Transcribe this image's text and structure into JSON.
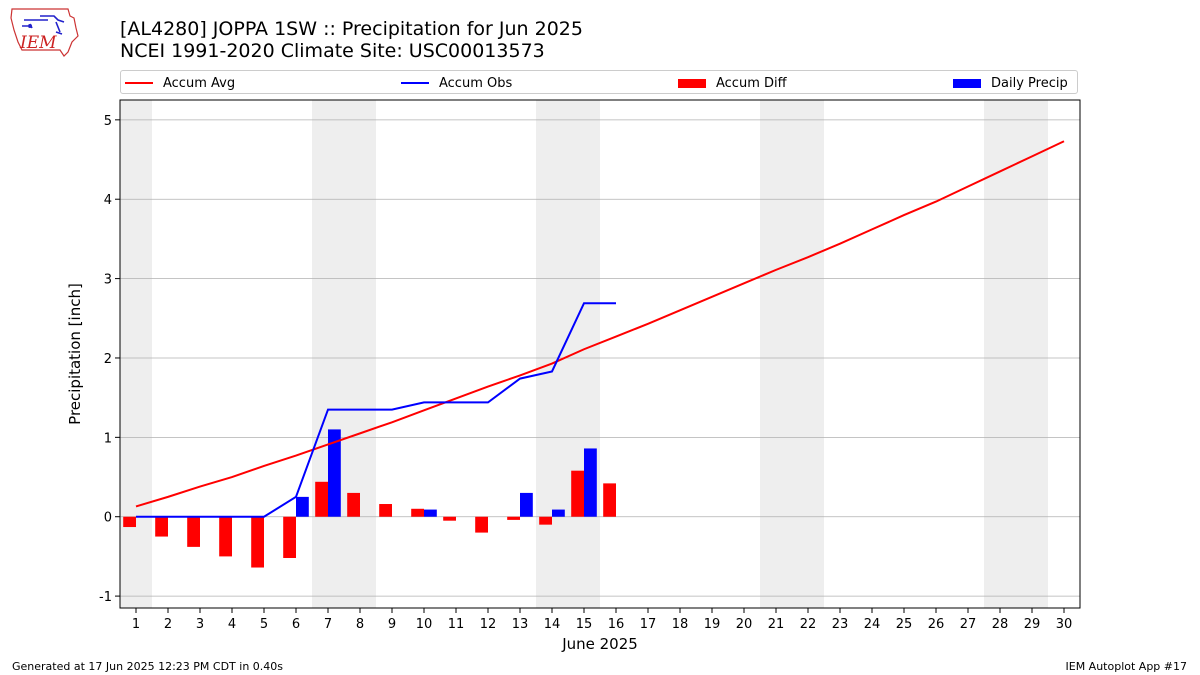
{
  "header": {
    "title_line1": "[AL4280] JOPPA 1SW :: Precipitation for Jun 2025",
    "title_line2": "NCEI 1991-2020 Climate Site: USC00013573",
    "logo_text": "IEM"
  },
  "footer": {
    "left": "Generated at 17 Jun 2025 12:23 PM CDT in 0.40s",
    "right": "IEM Autoplot App #17"
  },
  "colors": {
    "accum_avg": "#ff0000",
    "accum_obs": "#0000ff",
    "accum_diff": "#ff0000",
    "daily_precip": "#0000ff",
    "weekend_shade": "#eeeeee",
    "grid": "#b0b0b0"
  },
  "chart_data": {
    "type": "bar",
    "xlabel": "June 2025",
    "ylabel": "Precipitation [inch]",
    "xlim": [
      0.5,
      30.5
    ],
    "ylim": [
      -1.15,
      5.25
    ],
    "yticks": [
      -1,
      0,
      1,
      2,
      3,
      4,
      5
    ],
    "xticks": [
      1,
      2,
      3,
      4,
      5,
      6,
      7,
      8,
      9,
      10,
      11,
      12,
      13,
      14,
      15,
      16,
      17,
      18,
      19,
      20,
      21,
      22,
      23,
      24,
      25,
      26,
      27,
      28,
      29,
      30
    ],
    "grid": "horizontal",
    "legend_position": "top",
    "weekend_shading": [
      [
        0.5,
        1.5
      ],
      [
        6.5,
        8.5
      ],
      [
        13.5,
        15.5
      ],
      [
        20.5,
        22.5
      ],
      [
        27.5,
        29.5
      ]
    ],
    "series": [
      {
        "name": "Accum Avg",
        "kind": "line",
        "x": [
          1,
          2,
          3,
          4,
          5,
          6,
          7,
          8,
          9,
          10,
          11,
          12,
          13,
          14,
          15,
          16,
          17,
          18,
          19,
          20,
          21,
          22,
          23,
          24,
          25,
          26,
          27,
          28,
          29,
          30
        ],
        "values": [
          0.13,
          0.25,
          0.38,
          0.5,
          0.64,
          0.77,
          0.91,
          1.05,
          1.19,
          1.34,
          1.49,
          1.64,
          1.78,
          1.93,
          2.11,
          2.27,
          2.43,
          2.6,
          2.77,
          2.94,
          3.11,
          3.27,
          3.44,
          3.62,
          3.8,
          3.97,
          4.16,
          4.35,
          4.54,
          4.73
        ]
      },
      {
        "name": "Accum Obs",
        "kind": "line",
        "x": [
          1,
          2,
          3,
          4,
          5,
          6,
          7,
          8,
          9,
          10,
          11,
          12,
          13,
          14,
          15,
          16
        ],
        "values": [
          0,
          0,
          0,
          0,
          0,
          0.25,
          1.35,
          1.35,
          1.35,
          1.44,
          1.44,
          1.44,
          1.74,
          1.83,
          2.69,
          2.69
        ]
      },
      {
        "name": "Accum Diff",
        "kind": "bar",
        "x": [
          1,
          2,
          3,
          4,
          5,
          6,
          7,
          8,
          9,
          10,
          11,
          12,
          13,
          14,
          15,
          16
        ],
        "values": [
          -0.13,
          -0.25,
          -0.38,
          -0.5,
          -0.64,
          -0.52,
          0.44,
          0.3,
          0.16,
          0.1,
          -0.05,
          -0.2,
          -0.04,
          -0.1,
          0.58,
          0.42
        ]
      },
      {
        "name": "Daily Precip",
        "kind": "bar",
        "x": [
          1,
          2,
          3,
          4,
          5,
          6,
          7,
          8,
          9,
          10,
          11,
          12,
          13,
          14,
          15,
          16
        ],
        "values": [
          0,
          0,
          0,
          0,
          0,
          0.25,
          1.1,
          0,
          0,
          0.09,
          0,
          0,
          0.3,
          0.09,
          0.86,
          0
        ]
      }
    ]
  }
}
